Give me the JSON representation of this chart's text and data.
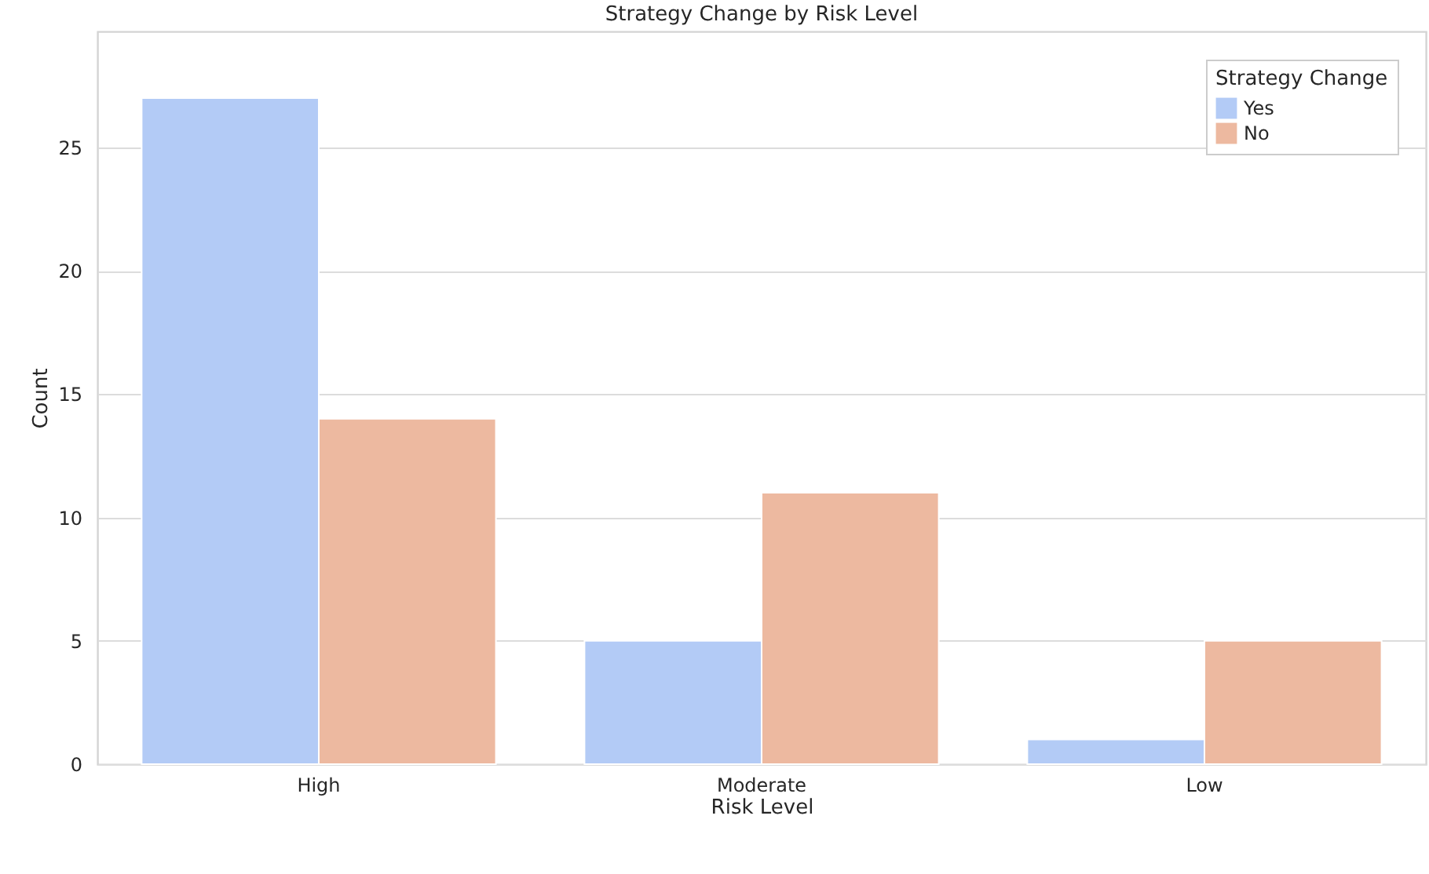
{
  "chart_data": {
    "type": "bar",
    "title": "Strategy Change by Risk Level",
    "xlabel": "Risk Level",
    "ylabel": "Count",
    "legend_title": "Strategy Change",
    "categories": [
      "High",
      "Moderate",
      "Low"
    ],
    "series": [
      {
        "name": "Yes",
        "color": "#b3cbf6",
        "values": [
          27,
          5,
          1
        ]
      },
      {
        "name": "No",
        "color": "#edb9a0",
        "values": [
          14,
          11,
          5
        ]
      }
    ],
    "ylim": [
      0,
      29.7
    ],
    "yticks": [
      0,
      5,
      10,
      15,
      20,
      25
    ],
    "grid": "y",
    "legend": "top right"
  }
}
